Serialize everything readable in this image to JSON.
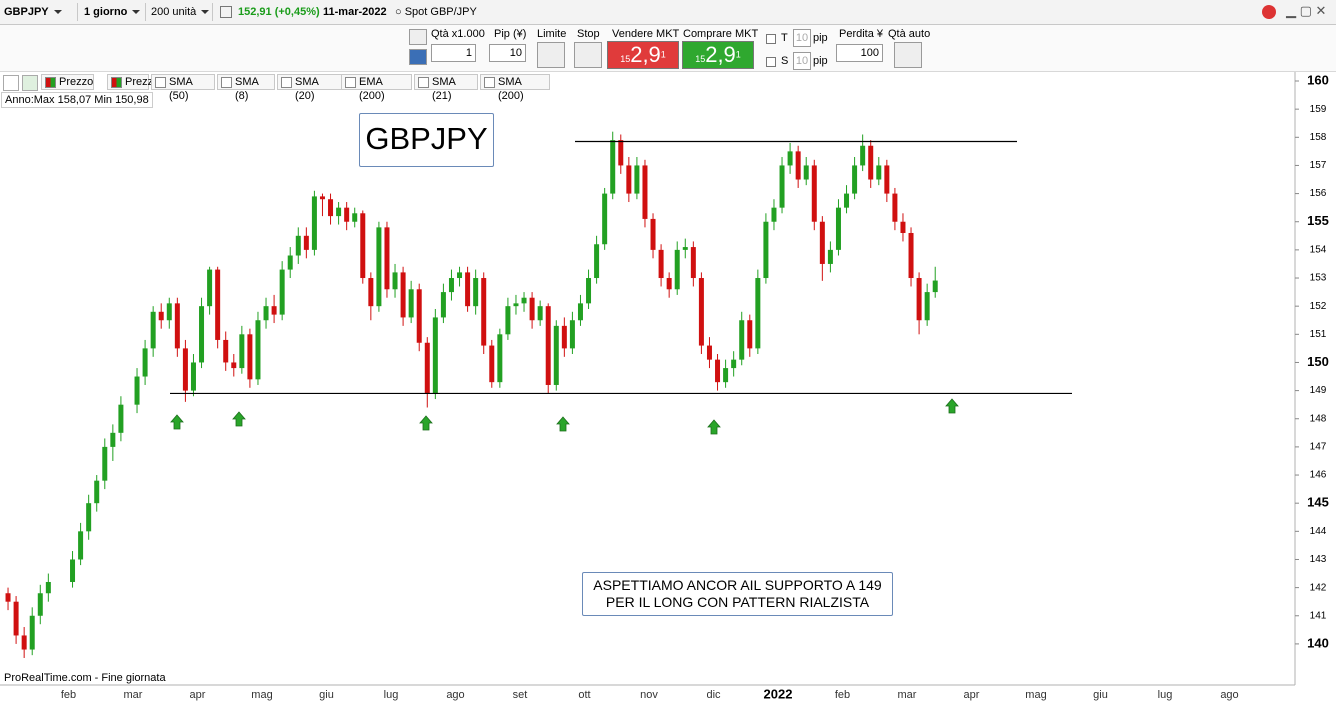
{
  "toolbar": {
    "symbol": "GBPJPY",
    "period": "1 giorno",
    "units": "200 unità",
    "last": "152,91 (+0,45%)",
    "date": "11-mar-2022",
    "instrument": "Spot GBP/JPY"
  },
  "order_panel": {
    "qty_label": "Qtà x1.000",
    "qty": "1",
    "pip_label": "Pip (¥)",
    "pip": "10",
    "limit": "Limite",
    "stop": "Stop",
    "sell": {
      "label": "Vendere MKT",
      "big": "15",
      "price": "2,9",
      "small": "1"
    },
    "buy": {
      "label": "Comprare MKT",
      "big": "15",
      "price": "2,9",
      "small": "1"
    },
    "t_label": "T",
    "s_label": "S",
    "t_pip": "10",
    "s_pip": "10",
    "pip_unit": "pip",
    "loss_label": "Perdita ¥",
    "loss": "100",
    "auto_label": "Qtà auto"
  },
  "indicators": [
    "Prezzo",
    "Prezzo",
    "SMA (50)",
    "SMA (8)",
    "SMA (20)",
    "EMA (200)",
    "SMA (21)",
    "SMA (200)"
  ],
  "chart_data": {
    "type": "candlestick",
    "title": "GBPJPY",
    "range_info": "Anno:Max 158,07 Min 150,98",
    "annotation": [
      "ASPETTIAMO ANCOR AIL SUPPORTO A 149",
      "PER IL LONG CON PATTERN RIALZISTA"
    ],
    "footer": "ProRealTime.com - Fine giornata",
    "up_color": "#22a022",
    "down_color": "#d01010",
    "levels": [
      157.85,
      148.9
    ],
    "ylim": [
      138.54,
      160.32
    ],
    "yticks": [
      140,
      141,
      142,
      143,
      144,
      145,
      146,
      147,
      148,
      149,
      150,
      151,
      152,
      153,
      154,
      155,
      156,
      157,
      158,
      159,
      160
    ],
    "months": [
      {
        "label": null,
        "ohlc": [
          [
            141.8,
            142.0,
            141.2,
            141.5
          ],
          [
            141.5,
            141.7,
            140.0,
            140.3
          ],
          [
            140.3,
            140.6,
            139.5,
            139.8
          ],
          [
            139.8,
            141.3,
            139.6,
            141.0
          ],
          [
            141.0,
            142.1,
            140.7,
            141.8
          ],
          [
            141.8,
            142.5,
            141.5,
            142.2
          ]
        ]
      },
      {
        "label": "feb",
        "ohlc": [
          [
            142.2,
            143.3,
            142.0,
            143.0
          ],
          [
            143.0,
            144.3,
            142.8,
            144.0
          ],
          [
            144.0,
            145.3,
            143.7,
            145.0
          ],
          [
            145.0,
            146.0,
            144.7,
            145.8
          ],
          [
            145.8,
            147.3,
            145.5,
            147.0
          ],
          [
            147.0,
            147.8,
            146.5,
            147.5
          ],
          [
            147.5,
            148.8,
            147.2,
            148.5
          ]
        ]
      },
      {
        "label": "mar",
        "ohlc": [
          [
            148.5,
            149.8,
            148.2,
            149.5
          ],
          [
            149.5,
            150.8,
            149.2,
            150.5
          ],
          [
            150.5,
            152.0,
            150.2,
            151.8
          ],
          [
            151.8,
            152.1,
            151.2,
            151.5
          ],
          [
            151.5,
            152.3,
            151.2,
            152.1
          ],
          [
            152.1,
            152.3,
            150.2,
            150.5
          ],
          [
            150.5,
            150.8,
            148.6,
            149.0
          ],
          [
            149.0,
            150.3,
            148.8,
            150.0
          ]
        ]
      },
      {
        "label": "apr",
        "ohlc": [
          [
            150.0,
            152.3,
            149.8,
            152.0
          ],
          [
            152.0,
            153.4,
            151.7,
            153.3
          ],
          [
            153.3,
            153.4,
            150.5,
            150.8
          ],
          [
            150.8,
            151.1,
            149.7,
            150.0
          ],
          [
            150.0,
            150.3,
            149.5,
            149.8
          ],
          [
            149.8,
            151.3,
            149.6,
            151.0
          ],
          [
            151.0,
            151.2,
            149.1,
            149.4
          ],
          [
            149.4,
            151.8,
            149.2,
            151.5
          ]
        ]
      },
      {
        "label": "mag",
        "ohlc": [
          [
            151.5,
            152.3,
            151.2,
            152.0
          ],
          [
            152.0,
            152.4,
            151.4,
            151.7
          ],
          [
            151.7,
            153.6,
            151.5,
            153.3
          ],
          [
            153.3,
            154.1,
            153.0,
            153.8
          ],
          [
            153.8,
            154.8,
            153.5,
            154.5
          ],
          [
            154.5,
            154.8,
            153.7,
            154.0
          ],
          [
            154.0,
            156.1,
            153.8,
            155.9
          ],
          [
            155.9,
            156.0,
            155.2,
            155.8
          ]
        ]
      },
      {
        "label": "giu",
        "ohlc": [
          [
            155.8,
            156.0,
            154.9,
            155.2
          ],
          [
            155.2,
            155.7,
            154.9,
            155.5
          ],
          [
            155.5,
            155.7,
            154.7,
            155.0
          ],
          [
            155.0,
            155.5,
            154.8,
            155.3
          ],
          [
            155.3,
            155.4,
            152.8,
            153.0
          ],
          [
            153.0,
            153.2,
            151.5,
            152.0
          ],
          [
            152.0,
            155.0,
            151.8,
            154.8
          ],
          [
            154.8,
            155.0,
            152.3,
            152.6
          ]
        ]
      },
      {
        "label": "lug",
        "ohlc": [
          [
            152.6,
            153.5,
            152.3,
            153.2
          ],
          [
            153.2,
            153.4,
            151.3,
            151.6
          ],
          [
            151.6,
            152.9,
            151.4,
            152.6
          ],
          [
            152.6,
            152.8,
            150.4,
            150.7
          ],
          [
            150.7,
            150.9,
            148.4,
            148.9
          ],
          [
            148.9,
            151.9,
            148.7,
            151.6
          ],
          [
            151.6,
            152.8,
            151.4,
            152.5
          ],
          [
            152.5,
            153.3,
            152.2,
            153.0
          ]
        ]
      },
      {
        "label": "ago",
        "ohlc": [
          [
            153.0,
            153.4,
            152.7,
            153.2
          ],
          [
            153.2,
            153.4,
            151.8,
            152.0
          ],
          [
            152.0,
            153.3,
            151.7,
            153.0
          ],
          [
            153.0,
            153.2,
            150.3,
            150.6
          ],
          [
            150.6,
            150.8,
            149.1,
            149.3
          ],
          [
            149.3,
            151.2,
            149.1,
            151.0
          ],
          [
            151.0,
            152.3,
            150.8,
            152.0
          ],
          [
            152.0,
            152.4,
            151.7,
            152.1
          ]
        ]
      },
      {
        "label": "set",
        "ohlc": [
          [
            152.1,
            152.5,
            151.8,
            152.3
          ],
          [
            152.3,
            152.5,
            151.2,
            151.5
          ],
          [
            151.5,
            152.2,
            151.3,
            152.0
          ],
          [
            152.0,
            152.1,
            148.9,
            149.2
          ],
          [
            149.2,
            151.5,
            149.0,
            151.3
          ],
          [
            151.3,
            151.6,
            150.2,
            150.5
          ],
          [
            150.5,
            151.8,
            150.3,
            151.5
          ],
          [
            151.5,
            152.4,
            151.3,
            152.1
          ]
        ]
      },
      {
        "label": "ott",
        "ohlc": [
          [
            152.1,
            153.3,
            151.9,
            153.0
          ],
          [
            153.0,
            154.5,
            152.8,
            154.2
          ],
          [
            154.2,
            156.2,
            154.0,
            156.0
          ],
          [
            156.0,
            158.2,
            155.8,
            157.9
          ],
          [
            157.9,
            158.1,
            156.7,
            157.0
          ],
          [
            157.0,
            157.3,
            155.7,
            156.0
          ],
          [
            156.0,
            157.3,
            155.8,
            157.0
          ],
          [
            157.0,
            157.2,
            154.8,
            155.1
          ]
        ]
      },
      {
        "label": "nov",
        "ohlc": [
          [
            155.1,
            155.3,
            153.7,
            154.0
          ],
          [
            154.0,
            154.2,
            152.7,
            153.0
          ],
          [
            153.0,
            153.2,
            152.3,
            152.6
          ],
          [
            152.6,
            154.3,
            152.4,
            154.0
          ],
          [
            154.0,
            154.4,
            153.7,
            154.1
          ],
          [
            154.1,
            154.3,
            152.7,
            153.0
          ],
          [
            153.0,
            153.2,
            150.3,
            150.6
          ],
          [
            150.6,
            150.9,
            149.8,
            150.1
          ]
        ]
      },
      {
        "label": "dic",
        "ohlc": [
          [
            150.1,
            150.3,
            149.0,
            149.3
          ],
          [
            149.3,
            150.1,
            149.1,
            149.8
          ],
          [
            149.8,
            150.4,
            149.5,
            150.1
          ],
          [
            150.1,
            151.8,
            149.9,
            151.5
          ],
          [
            151.5,
            151.7,
            150.2,
            150.5
          ],
          [
            150.5,
            153.3,
            150.3,
            153.0
          ],
          [
            153.0,
            155.3,
            152.8,
            155.0
          ],
          [
            155.0,
            155.8,
            154.7,
            155.5
          ]
        ]
      },
      {
        "label": "2022",
        "ohlc": [
          [
            155.5,
            157.3,
            155.3,
            157.0
          ],
          [
            157.0,
            157.8,
            156.7,
            157.5
          ],
          [
            157.5,
            157.7,
            156.2,
            156.5
          ],
          [
            156.5,
            157.3,
            156.3,
            157.0
          ],
          [
            157.0,
            157.2,
            154.7,
            155.0
          ],
          [
            155.0,
            155.2,
            152.9,
            153.5
          ],
          [
            153.5,
            154.3,
            153.2,
            154.0
          ],
          [
            154.0,
            155.8,
            153.8,
            155.5
          ]
        ]
      },
      {
        "label": "feb",
        "ohlc": [
          [
            155.5,
            156.3,
            155.3,
            156.0
          ],
          [
            156.0,
            157.3,
            155.8,
            157.0
          ],
          [
            157.0,
            158.1,
            156.8,
            157.7
          ],
          [
            157.7,
            157.9,
            156.2,
            156.5
          ],
          [
            156.5,
            157.3,
            156.3,
            157.0
          ],
          [
            157.0,
            157.2,
            155.7,
            156.0
          ],
          [
            156.0,
            156.2,
            154.7,
            155.0
          ],
          [
            155.0,
            155.3,
            154.3,
            154.6
          ]
        ]
      },
      {
        "label": "mar",
        "ohlc": [
          [
            154.6,
            154.8,
            152.7,
            153.0
          ],
          [
            153.0,
            153.2,
            151.0,
            151.5
          ],
          [
            151.5,
            152.8,
            151.3,
            152.5
          ],
          [
            152.5,
            153.4,
            152.3,
            152.91
          ]
        ]
      },
      {
        "label": "apr",
        "ohlc": []
      },
      {
        "label": "mag",
        "ohlc": []
      },
      {
        "label": "giu",
        "ohlc": []
      },
      {
        "label": "lug",
        "ohlc": []
      },
      {
        "label": "ago",
        "ohlc": []
      }
    ]
  }
}
